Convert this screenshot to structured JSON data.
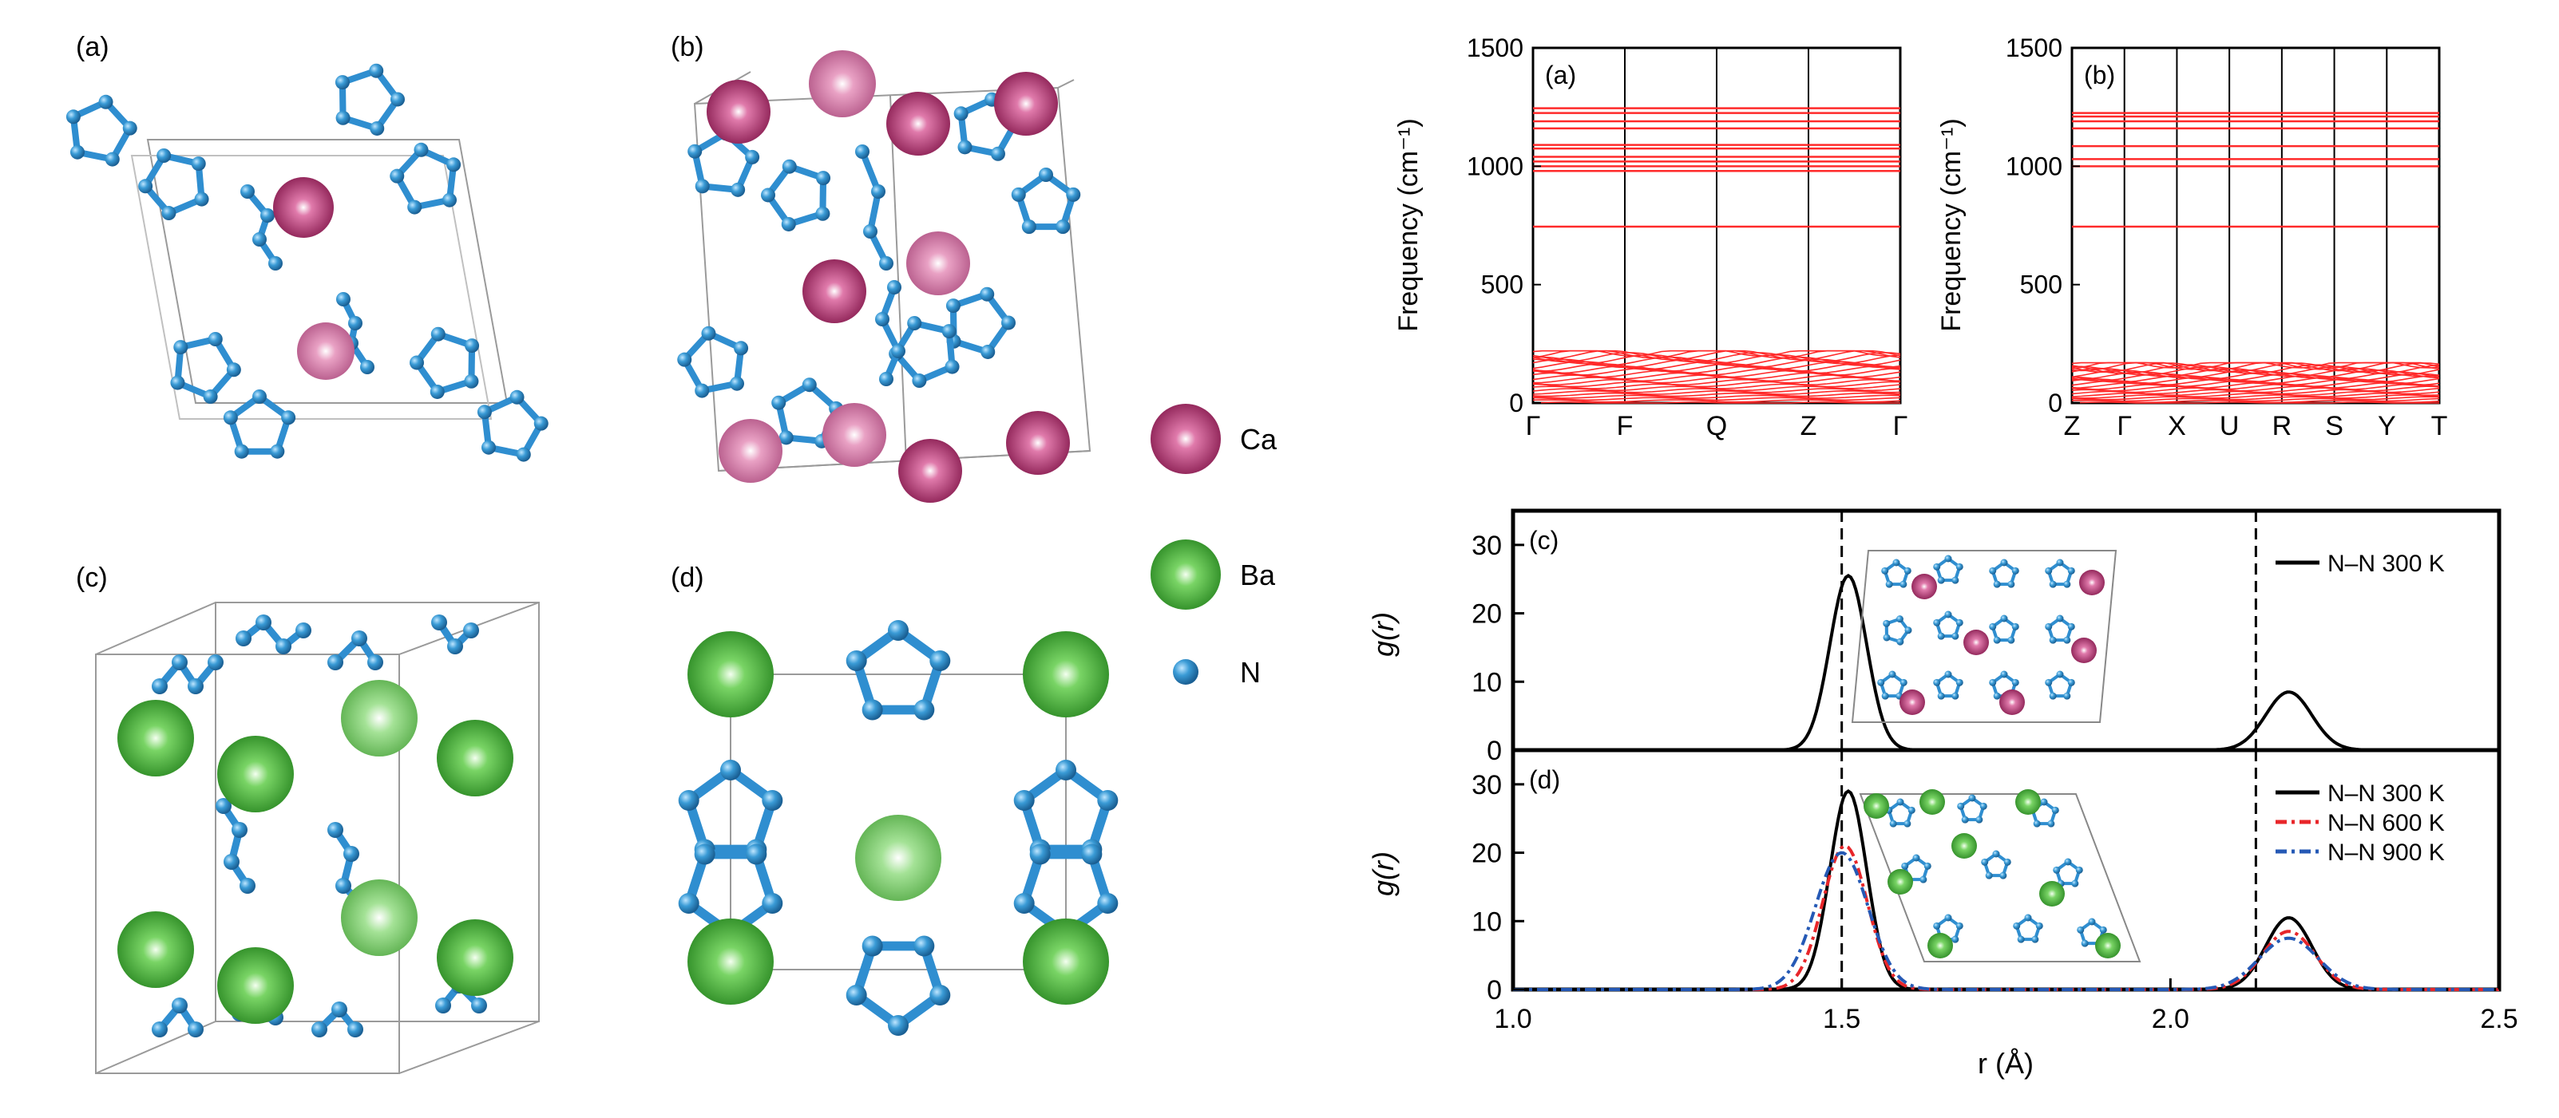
{
  "structures": {
    "a_label": "(a)",
    "b_label": "(b)",
    "c_label": "(c)",
    "d_label": "(d)"
  },
  "legend": {
    "items": [
      {
        "label": "Ca",
        "color": "#c2407e"
      },
      {
        "label": "Ba",
        "color": "#5cc24a"
      },
      {
        "label": "N",
        "color": "#2f8ed0"
      }
    ]
  },
  "colors": {
    "nitrogen": "#3a9bd6",
    "calcium": "#c2407e",
    "barium": "#5cc24a",
    "phonon": "#ff2a2a",
    "n600": "#e8262a",
    "n900": "#2559b5"
  },
  "chart_data": [
    {
      "type": "line",
      "panel_label": "(a)",
      "ylabel": "Frequency (cm⁻¹)",
      "ylim": [
        0,
        1500
      ],
      "yticks": [
        0,
        500,
        1000,
        1500
      ],
      "kpath": [
        "Γ",
        "F",
        "Q",
        "Z",
        "Γ"
      ],
      "high_freq_bands": [
        745,
        980,
        1000,
        1020,
        1040,
        1075,
        1090,
        1160,
        1190,
        1225,
        1245
      ],
      "low_freq_band_range": [
        0,
        220
      ]
    },
    {
      "type": "line",
      "panel_label": "(b)",
      "ylabel": "Frequency (cm⁻¹)",
      "ylim": [
        0,
        1500
      ],
      "yticks": [
        0,
        500,
        1000,
        1500
      ],
      "kpath": [
        "Z",
        "Γ",
        "X",
        "U",
        "R",
        "S",
        "Y",
        "T"
      ],
      "high_freq_bands": [
        745,
        1000,
        1030,
        1085,
        1160,
        1190,
        1210,
        1225
      ],
      "low_freq_band_range": [
        0,
        170
      ]
    },
    {
      "type": "line",
      "panel_label": "(c)",
      "ylabel": "g(r)",
      "xlim": [
        1.0,
        2.5
      ],
      "ylim": [
        0,
        35
      ],
      "yticks": [
        0,
        10,
        20,
        30
      ],
      "vlines": [
        1.5,
        2.13
      ],
      "series": [
        {
          "name": "N–N 300 K",
          "peaks": [
            {
              "x": 1.51,
              "y": 25.5
            },
            {
              "x": 2.18,
              "y": 8.5
            }
          ]
        }
      ]
    },
    {
      "type": "line",
      "panel_label": "(d)",
      "ylabel": "g(r)",
      "xlabel": "r (Å)",
      "xlim": [
        1.0,
        2.5
      ],
      "ylim": [
        0,
        35
      ],
      "xticks": [
        1.0,
        1.5,
        2.0,
        2.5
      ],
      "xtick_labels": [
        "1.0",
        "1.5",
        "2.0",
        "2.5"
      ],
      "yticks": [
        0,
        10,
        20,
        30
      ],
      "vlines": [
        1.5,
        2.13
      ],
      "series": [
        {
          "name": "N–N 300 K",
          "peaks": [
            {
              "x": 1.51,
              "y": 29
            },
            {
              "x": 2.18,
              "y": 10.5
            }
          ]
        },
        {
          "name": "N–N 600 K",
          "peaks": [
            {
              "x": 1.505,
              "y": 21
            },
            {
              "x": 2.18,
              "y": 8.5
            }
          ]
        },
        {
          "name": "N–N 900 K",
          "peaks": [
            {
              "x": 1.5,
              "y": 20
            },
            {
              "x": 2.18,
              "y": 7.5
            }
          ]
        }
      ]
    }
  ]
}
